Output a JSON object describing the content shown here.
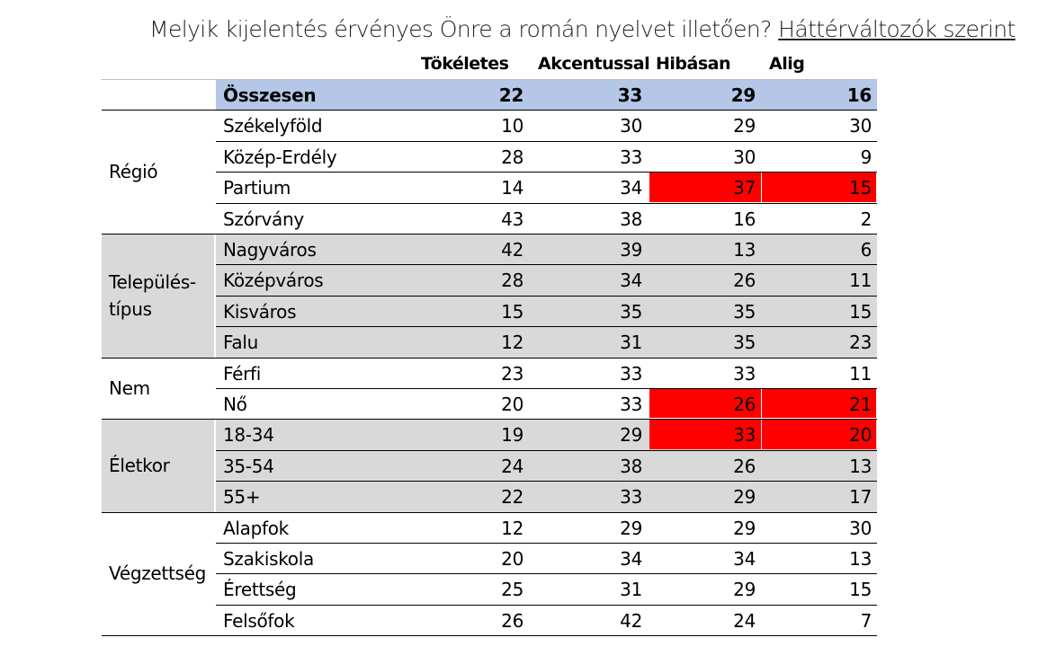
{
  "title": {
    "main": "Melyik kijelentés érvényes Önre a román nyelvet illetően? ",
    "underlined": "Háttérváltozók szerint"
  },
  "chart_data": {
    "type": "table",
    "columns": [
      "Tökéletes",
      "Akcentussal",
      "Hibásan",
      "Alig"
    ],
    "total": {
      "label": "Összesen",
      "values": [
        22,
        33,
        29,
        16
      ]
    },
    "groups": [
      {
        "name": "Régió",
        "shaded": false,
        "rows": [
          {
            "label": "Székelyföld",
            "values": [
              10,
              30,
              29,
              30
            ]
          },
          {
            "label": "Közép-Erdély",
            "values": [
              28,
              33,
              30,
              9
            ]
          },
          {
            "label": "Partium",
            "values": [
              14,
              34,
              37,
              15
            ],
            "highlight": [
              2,
              3
            ]
          },
          {
            "label": "Szórvány",
            "values": [
              43,
              38,
              16,
              2
            ]
          }
        ]
      },
      {
        "name": "Település-típus",
        "name_lines": [
          "Település-",
          "típus"
        ],
        "shaded": true,
        "rows": [
          {
            "label": "Nagyváros",
            "values": [
              42,
              39,
              13,
              6
            ]
          },
          {
            "label": "Középváros",
            "values": [
              28,
              34,
              26,
              11
            ]
          },
          {
            "label": "Kisváros",
            "values": [
              15,
              35,
              35,
              15
            ]
          },
          {
            "label": "Falu",
            "values": [
              12,
              31,
              35,
              23
            ]
          }
        ]
      },
      {
        "name": "Nem",
        "shaded": false,
        "rows": [
          {
            "label": "Férfi",
            "values": [
              23,
              33,
              33,
              11
            ]
          },
          {
            "label": "Nő",
            "values": [
              20,
              33,
              26,
              21
            ],
            "highlight": [
              2,
              3
            ]
          }
        ]
      },
      {
        "name": "Életkor",
        "shaded": true,
        "rows": [
          {
            "label": "18-34",
            "values": [
              19,
              29,
              33,
              20
            ],
            "highlight": [
              2,
              3
            ]
          },
          {
            "label": "35-54",
            "values": [
              24,
              38,
              26,
              13
            ]
          },
          {
            "label": "55+",
            "values": [
              22,
              33,
              29,
              17
            ]
          }
        ]
      },
      {
        "name": "Végzettség",
        "shaded": false,
        "rows": [
          {
            "label": "Alapfok",
            "values": [
              12,
              29,
              29,
              30
            ]
          },
          {
            "label": "Szakiskola",
            "values": [
              20,
              34,
              34,
              13
            ]
          },
          {
            "label": "Érettség",
            "values": [
              25,
              31,
              29,
              15
            ]
          },
          {
            "label": "Felsőfok",
            "values": [
              26,
              42,
              24,
              7
            ]
          }
        ]
      }
    ]
  },
  "colors": {
    "total_row": "#b4c7e7",
    "shaded_group": "#d9d9d9",
    "highlight": "#ff0000",
    "border": "#000000"
  }
}
